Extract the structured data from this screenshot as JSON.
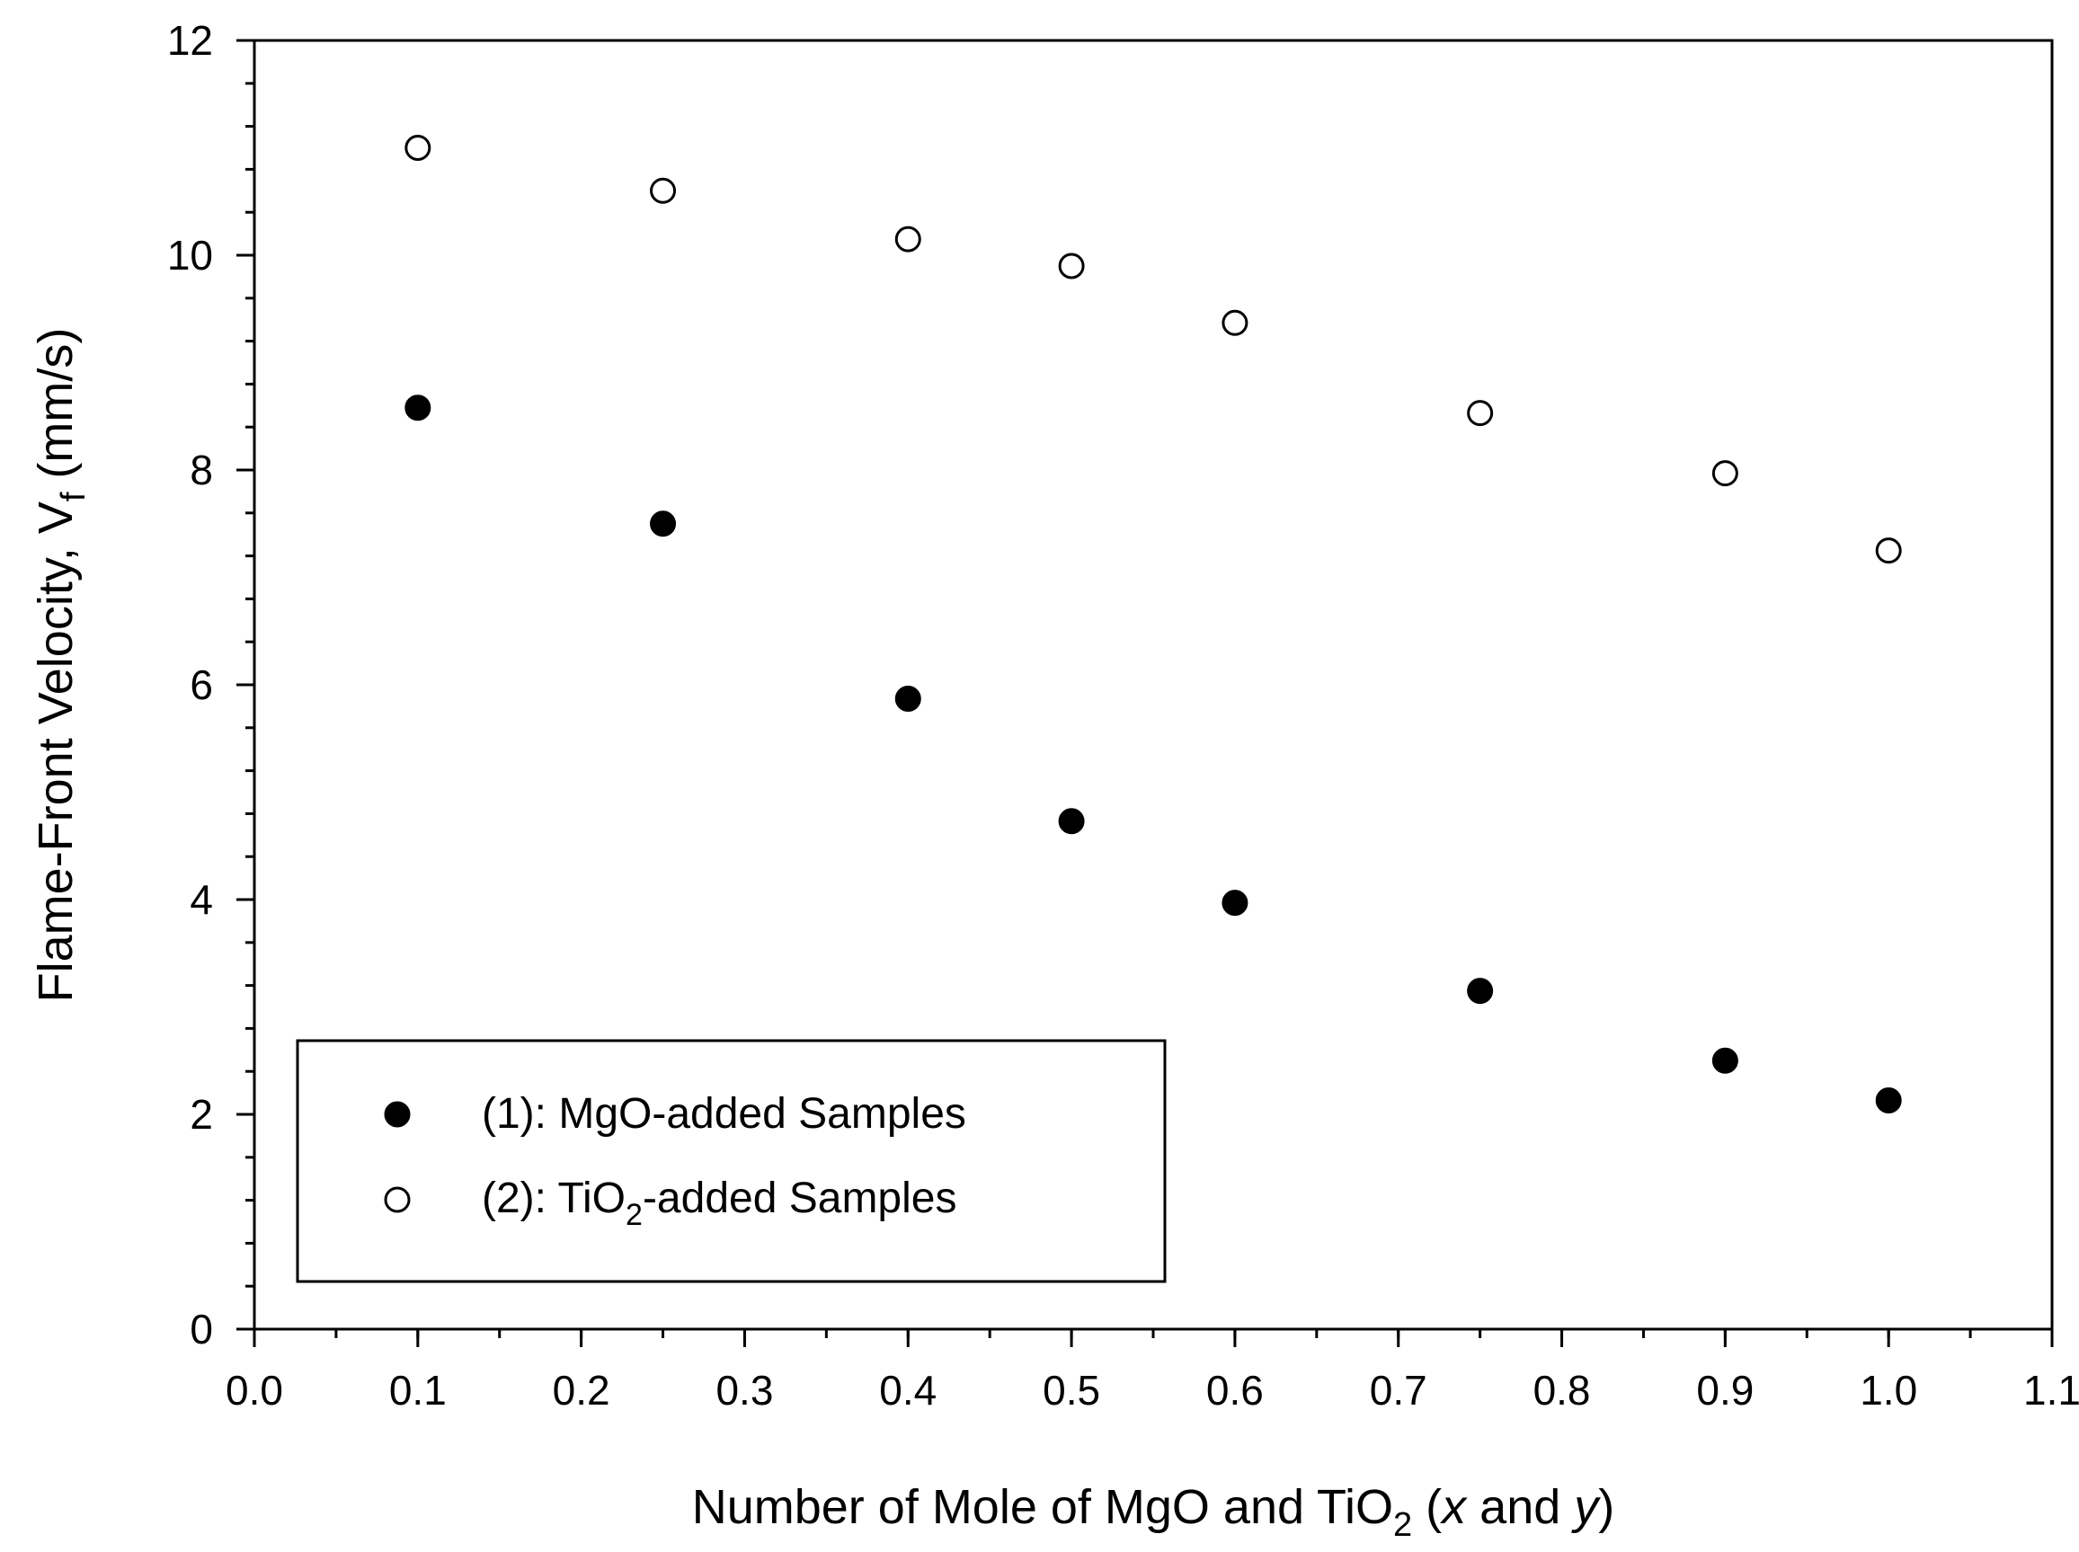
{
  "chart_data": {
    "type": "scatter",
    "title": "",
    "xlabel": {
      "prefix": "Number of Mole of MgO and TiO",
      "subscript": "2",
      "middle": " (",
      "var1": "x",
      "and": " and ",
      "var2": "y",
      "suffix": ")"
    },
    "ylabel": {
      "prefix": "Flame-Front Velocity, V",
      "subscript": "f",
      "suffix": " (mm/s)"
    },
    "xlim": [
      0.0,
      1.1
    ],
    "ylim": [
      0,
      12
    ],
    "x_ticks": [
      {
        "value": 0.0,
        "label": "0.0"
      },
      {
        "value": 0.1,
        "label": "0.1"
      },
      {
        "value": 0.2,
        "label": "0.2"
      },
      {
        "value": 0.3,
        "label": "0.3"
      },
      {
        "value": 0.4,
        "label": "0.4"
      },
      {
        "value": 0.5,
        "label": "0.5"
      },
      {
        "value": 0.6,
        "label": "0.6"
      },
      {
        "value": 0.7,
        "label": "0.7"
      },
      {
        "value": 0.8,
        "label": "0.8"
      },
      {
        "value": 0.9,
        "label": "0.9"
      },
      {
        "value": 1.0,
        "label": "1.0"
      },
      {
        "value": 1.1,
        "label": "1.1"
      }
    ],
    "y_ticks": [
      {
        "value": 0,
        "label": "0"
      },
      {
        "value": 2,
        "label": "2"
      },
      {
        "value": 4,
        "label": "4"
      },
      {
        "value": 6,
        "label": "6"
      },
      {
        "value": 8,
        "label": "8"
      },
      {
        "value": 10,
        "label": "10"
      },
      {
        "value": 12,
        "label": "12"
      }
    ],
    "x_minor_step": 0.05,
    "y_minor_step": 0.4,
    "grid": false,
    "legend_position": "bottom-left",
    "series": [
      {
        "key": "mgo",
        "name": "(1): MgO-added Samples",
        "marker": "filled-circle",
        "color": "#000000",
        "points": [
          {
            "x": 0.1,
            "y": 8.58
          },
          {
            "x": 0.25,
            "y": 7.5
          },
          {
            "x": 0.4,
            "y": 5.87
          },
          {
            "x": 0.5,
            "y": 4.73
          },
          {
            "x": 0.6,
            "y": 3.97
          },
          {
            "x": 0.75,
            "y": 3.15
          },
          {
            "x": 0.9,
            "y": 2.5
          },
          {
            "x": 1.0,
            "y": 2.13
          }
        ]
      },
      {
        "key": "tio2",
        "name": {
          "prefix": "(2): TiO",
          "subscript": "2",
          "suffix": "-added Samples"
        },
        "marker": "open-circle",
        "color": "#000000",
        "points": [
          {
            "x": 0.1,
            "y": 11.0
          },
          {
            "x": 0.25,
            "y": 10.6
          },
          {
            "x": 0.4,
            "y": 10.15
          },
          {
            "x": 0.5,
            "y": 9.9
          },
          {
            "x": 0.6,
            "y": 9.37
          },
          {
            "x": 0.75,
            "y": 8.53
          },
          {
            "x": 0.9,
            "y": 7.97
          },
          {
            "x": 1.0,
            "y": 7.25
          }
        ]
      }
    ]
  }
}
